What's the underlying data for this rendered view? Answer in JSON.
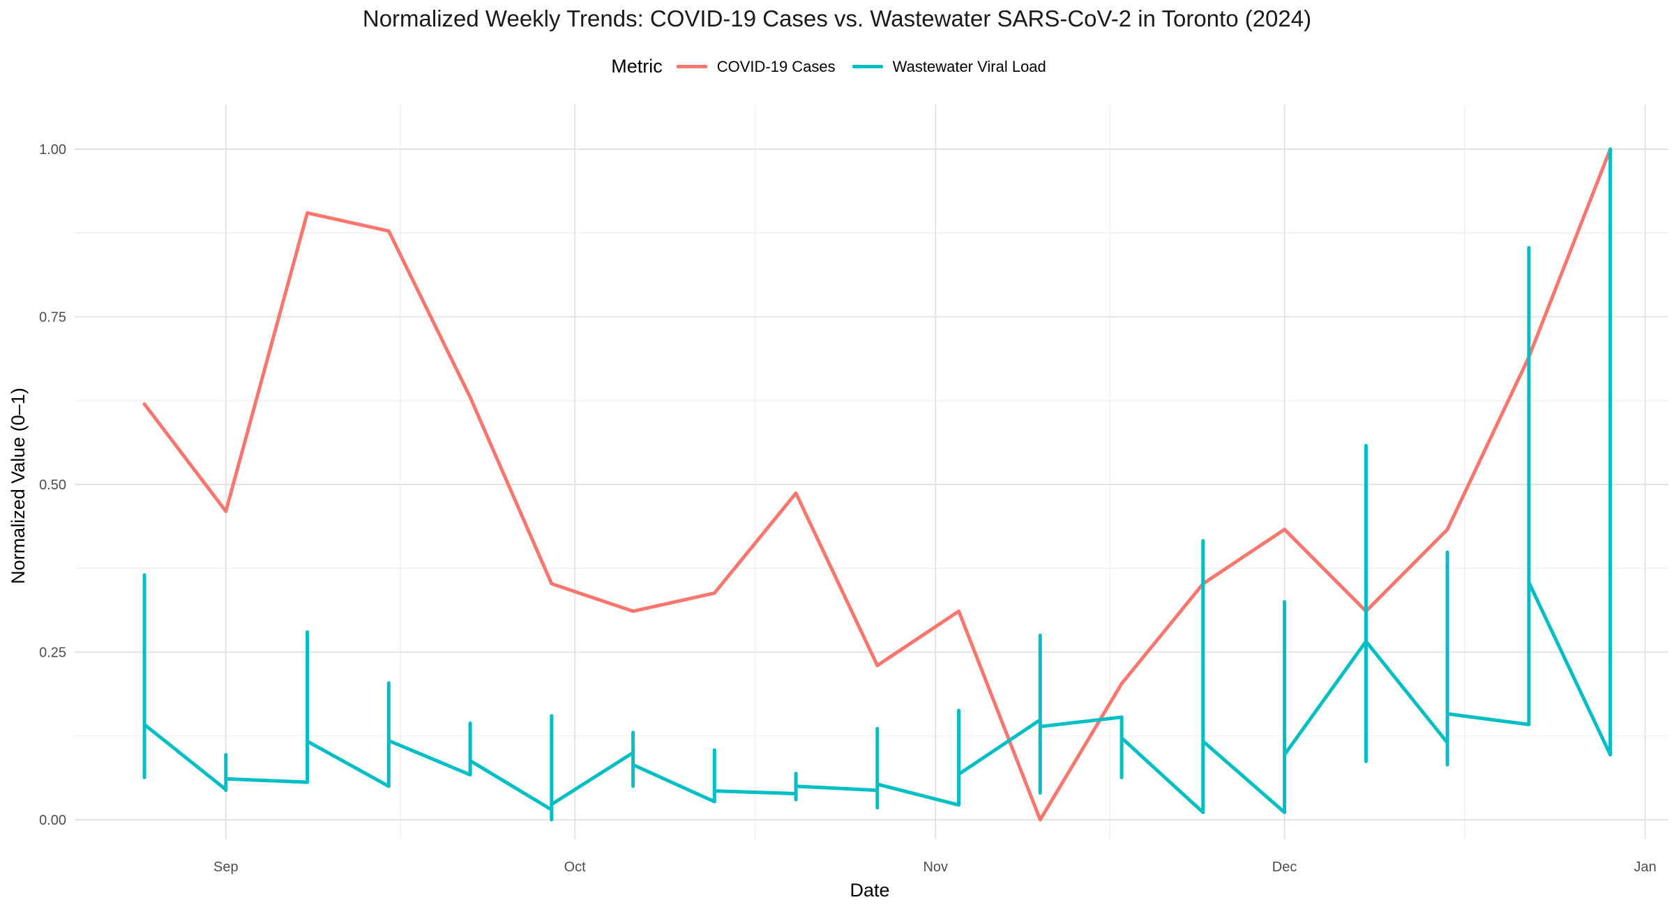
{
  "chart_data": {
    "type": "line",
    "title": "Normalized Weekly Trends: COVID-19 Cases vs. Wastewater SARS-CoV-2 in Toronto (2024)",
    "xlabel": "Date",
    "ylabel": "Normalized Value (0–1)",
    "ylim": [
      0,
      1
    ],
    "y_ticks": [
      0,
      0.25,
      0.5,
      0.75,
      1
    ],
    "y_tick_labels": [
      "0.00",
      "0.25",
      "0.50",
      "0.75",
      "1.00"
    ],
    "x_range": [
      "2024-08-19",
      "2025-01-03"
    ],
    "x_ticks": [
      "2024-09-01",
      "2024-10-01",
      "2024-11-01",
      "2024-12-01",
      "2025-01-01"
    ],
    "x_tick_labels": [
      "Sep",
      "Oct",
      "Nov",
      "Dec",
      "Jan"
    ],
    "grid": true,
    "legend": {
      "title": "Metric",
      "position": "top"
    },
    "series": [
      {
        "name": "COVID-19 Cases",
        "color": "#F8766D",
        "points": [
          [
            "2024-08-25",
            0.62
          ],
          [
            "2024-09-01",
            0.46
          ],
          [
            "2024-09-08",
            0.905
          ],
          [
            "2024-09-15",
            0.878
          ],
          [
            "2024-09-22",
            0.63
          ],
          [
            "2024-09-29",
            0.352
          ],
          [
            "2024-10-06",
            0.311
          ],
          [
            "2024-10-13",
            0.338
          ],
          [
            "2024-10-20",
            0.487
          ],
          [
            "2024-10-27",
            0.23
          ],
          [
            "2024-11-03",
            0.311
          ],
          [
            "2024-11-10",
            0.0
          ],
          [
            "2024-11-17",
            0.203
          ],
          [
            "2024-11-24",
            0.352
          ],
          [
            "2024-12-01",
            0.433
          ],
          [
            "2024-12-08",
            0.311
          ],
          [
            "2024-12-15",
            0.433
          ],
          [
            "2024-12-22",
            0.69
          ],
          [
            "2024-12-29",
            1.0
          ]
        ]
      },
      {
        "name": "Wastewater Viral Load",
        "color": "#00BFC4",
        "points": [
          [
            "2024-08-25",
            0.365
          ],
          [
            "2024-08-25",
            0.063
          ],
          [
            "2024-08-25",
            0.142
          ],
          [
            "2024-09-01",
            0.045
          ],
          [
            "2024-09-01",
            0.097
          ],
          [
            "2024-09-01",
            0.044
          ],
          [
            "2024-09-01",
            0.061
          ],
          [
            "2024-09-08",
            0.056
          ],
          [
            "2024-09-08",
            0.28
          ],
          [
            "2024-09-08",
            0.117
          ],
          [
            "2024-09-15",
            0.05
          ],
          [
            "2024-09-15",
            0.204
          ],
          [
            "2024-09-15",
            0.118
          ],
          [
            "2024-09-22",
            0.067
          ],
          [
            "2024-09-22",
            0.144
          ],
          [
            "2024-09-22",
            0.088
          ],
          [
            "2024-09-29",
            0.015
          ],
          [
            "2024-09-29",
            0.155
          ],
          [
            "2024-09-29",
            0.0
          ],
          [
            "2024-09-29",
            0.023
          ],
          [
            "2024-10-06",
            0.1
          ],
          [
            "2024-10-06",
            0.13
          ],
          [
            "2024-10-06",
            0.05
          ],
          [
            "2024-10-06",
            0.082
          ],
          [
            "2024-10-13",
            0.027
          ],
          [
            "2024-10-13",
            0.104
          ],
          [
            "2024-10-13",
            0.043
          ],
          [
            "2024-10-20",
            0.039
          ],
          [
            "2024-10-20",
            0.069
          ],
          [
            "2024-10-20",
            0.03
          ],
          [
            "2024-10-20",
            0.05
          ],
          [
            "2024-10-27",
            0.044
          ],
          [
            "2024-10-27",
            0.136
          ],
          [
            "2024-10-27",
            0.018
          ],
          [
            "2024-10-27",
            0.053
          ],
          [
            "2024-11-03",
            0.022
          ],
          [
            "2024-11-03",
            0.163
          ],
          [
            "2024-11-03",
            0.068
          ],
          [
            "2024-11-10",
            0.149
          ],
          [
            "2024-11-10",
            0.275
          ],
          [
            "2024-11-10",
            0.04
          ],
          [
            "2024-11-10",
            0.139
          ],
          [
            "2024-11-17",
            0.153
          ],
          [
            "2024-11-17",
            0.063
          ],
          [
            "2024-11-17",
            0.122
          ],
          [
            "2024-11-24",
            0.011
          ],
          [
            "2024-11-24",
            0.416
          ],
          [
            "2024-11-24",
            0.117
          ],
          [
            "2024-12-01",
            0.011
          ],
          [
            "2024-12-01",
            0.325
          ],
          [
            "2024-12-01",
            0.097
          ],
          [
            "2024-12-08",
            0.266
          ],
          [
            "2024-12-08",
            0.558
          ],
          [
            "2024-12-08",
            0.087
          ],
          [
            "2024-12-08",
            0.266
          ],
          [
            "2024-12-15",
            0.115
          ],
          [
            "2024-12-15",
            0.399
          ],
          [
            "2024-12-15",
            0.082
          ],
          [
            "2024-12-15",
            0.158
          ],
          [
            "2024-12-22",
            0.142
          ],
          [
            "2024-12-22",
            0.853
          ],
          [
            "2024-12-22",
            0.354
          ],
          [
            "2024-12-29",
            0.097
          ],
          [
            "2024-12-29",
            1.0
          ],
          [
            "2024-12-29",
            0.097
          ]
        ]
      }
    ]
  }
}
